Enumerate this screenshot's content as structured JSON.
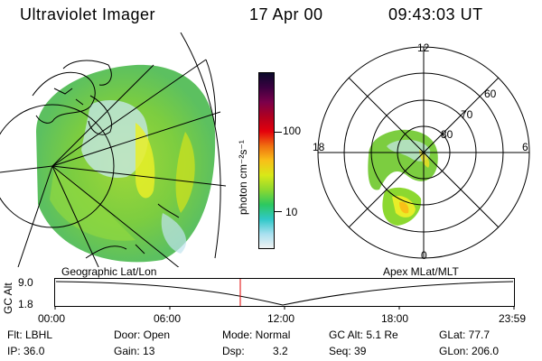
{
  "header": {
    "title": "Ultraviolet Imager",
    "date": "17 Apr 00",
    "time": "09:43:03 UT"
  },
  "colorbar": {
    "label": "photon cm⁻²s⁻¹",
    "ticks": [
      "100",
      "10"
    ],
    "colors": [
      "#0a0a2a",
      "#3a0040",
      "#7a004a",
      "#b00020",
      "#e4000c",
      "#f07010",
      "#f8c018",
      "#d8e818",
      "#8cd830",
      "#2cc860",
      "#30c8c8",
      "#a8e0f0",
      "#f2f2f2"
    ]
  },
  "polar_plot": {
    "mlt_labels": {
      "top": "12",
      "right": "6",
      "bottom": "0",
      "left": "18"
    },
    "lat_labels": [
      "60",
      "70",
      "80"
    ]
  },
  "timeline": {
    "left_label": "Geographic Lat/Lon",
    "right_label": "Apex MLat/MLT",
    "y_axis_label": "GC Alt",
    "y_ticks": [
      "9.0",
      "1.8"
    ],
    "x_ticks": [
      "00:00",
      "06:00",
      "12:00",
      "18:00",
      "23:59"
    ],
    "current_marker_time": "09:43"
  },
  "info": {
    "filter": "Flt: LBHL",
    "ip": "IP: 36.0",
    "door": "Door: Open",
    "gain": "Gain: 13",
    "mode": "Mode: Normal",
    "dsp_label": "Dsp:",
    "dsp_value": "3.2",
    "gc_alt": "GC Alt: 5.1 Re",
    "seq": "Seq: 39",
    "glat": "GLat: 77.7",
    "glon": "GLon: 206.0"
  }
}
